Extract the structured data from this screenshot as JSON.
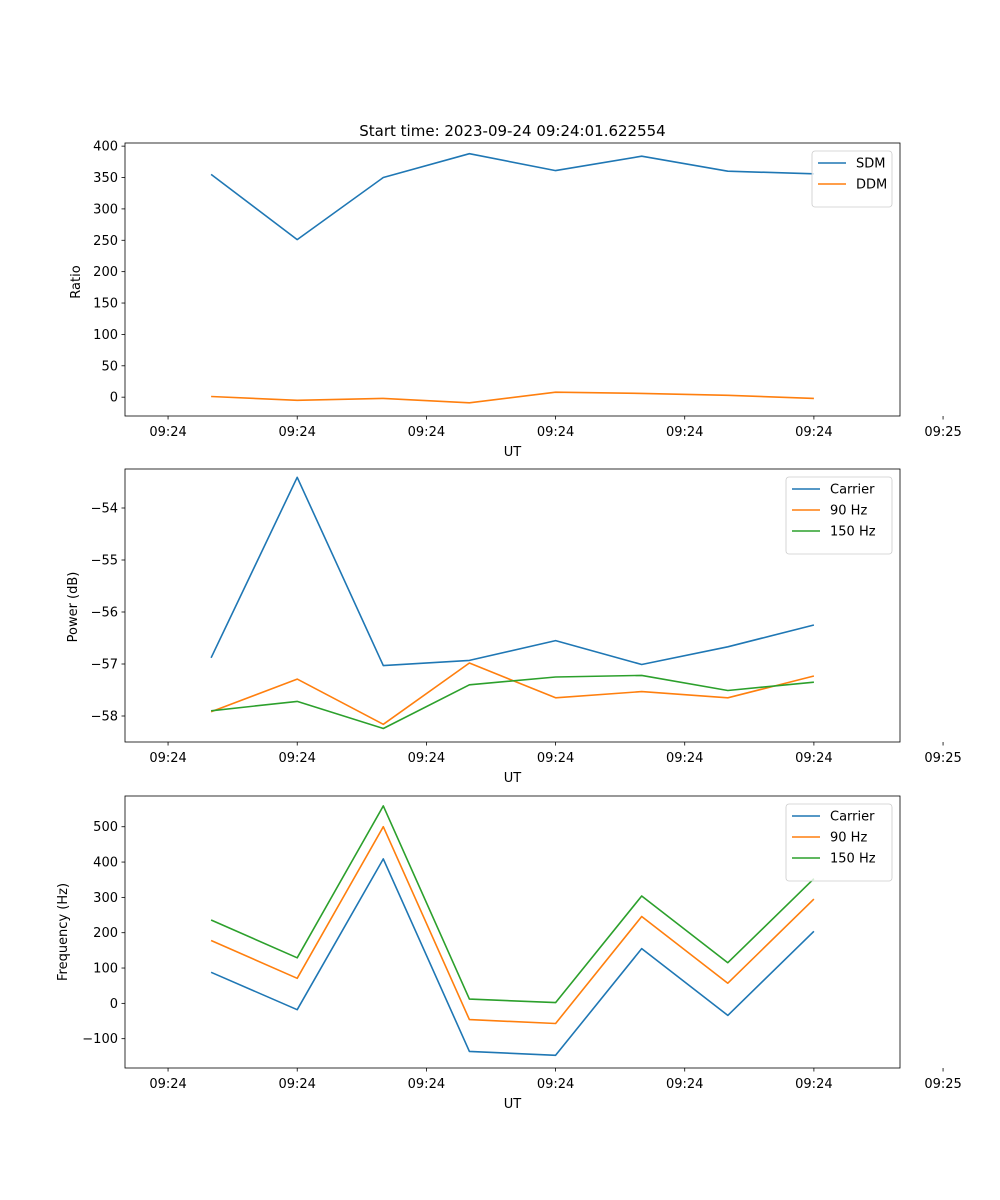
{
  "chart_data": [
    {
      "type": "line",
      "title": "Start time: 2023-09-24 09:24:01.622554",
      "xlabel": "UT",
      "ylabel": "Ratio",
      "x": [
        1,
        2,
        3,
        4,
        5,
        6,
        7,
        8
      ],
      "xlim": [
        0,
        9
      ],
      "xtick_values": [
        0.5,
        2,
        3.5,
        5,
        6.5,
        8,
        9.5
      ],
      "xtick_labels": [
        "09:24",
        "09:24",
        "09:24",
        "09:24",
        "09:24",
        "09:24",
        "09:25"
      ],
      "ylim": [
        -30,
        405
      ],
      "yticks": [
        0,
        50,
        100,
        150,
        200,
        250,
        300,
        350,
        400
      ],
      "ytick_labels": [
        "0",
        "50",
        "100",
        "150",
        "200",
        "250",
        "300",
        "350",
        "400"
      ],
      "legend": "top-right",
      "series": [
        {
          "name": "SDM",
          "color": "#1f77b4",
          "values": [
            355,
            251,
            350,
            388,
            361,
            384,
            360,
            356
          ]
        },
        {
          "name": "DDM",
          "color": "#ff7f0e",
          "values": [
            1,
            -5,
            -2,
            -9,
            8,
            6,
            3,
            -2
          ]
        }
      ]
    },
    {
      "type": "line",
      "title": "",
      "xlabel": "UT",
      "ylabel": "Power (dB)",
      "x": [
        1,
        2,
        3,
        4,
        5,
        6,
        7,
        8
      ],
      "xlim": [
        0,
        9
      ],
      "xtick_values": [
        0.5,
        2,
        3.5,
        5,
        6.5,
        8,
        9.5
      ],
      "xtick_labels": [
        "09:24",
        "09:24",
        "09:24",
        "09:24",
        "09:24",
        "09:24",
        "09:25"
      ],
      "ylim": [
        -58.5,
        -53.25
      ],
      "yticks": [
        -58,
        -57,
        -56,
        -55,
        -54
      ],
      "ytick_labels": [
        "−58",
        "−57",
        "−56",
        "−55",
        "−54"
      ],
      "legend": "top-right",
      "series": [
        {
          "name": "Carrier",
          "color": "#1f77b4",
          "values": [
            -56.88,
            -53.41,
            -57.03,
            -56.93,
            -56.55,
            -57.01,
            -56.67,
            -56.25
          ]
        },
        {
          "name": "90 Hz",
          "color": "#ff7f0e",
          "values": [
            -57.92,
            -57.29,
            -58.16,
            -56.98,
            -57.65,
            -57.53,
            -57.65,
            -57.23
          ]
        },
        {
          "name": "150 Hz",
          "color": "#2ca02c",
          "values": [
            -57.9,
            -57.72,
            -58.24,
            -57.4,
            -57.25,
            -57.22,
            -57.51,
            -57.35
          ]
        }
      ]
    },
    {
      "type": "line",
      "title": "",
      "xlabel": "UT",
      "ylabel": "Frequency (Hz)",
      "x": [
        1,
        2,
        3,
        4,
        5,
        6,
        7,
        8
      ],
      "xlim": [
        0,
        9
      ],
      "xtick_values": [
        0.5,
        2,
        3.5,
        5,
        6.5,
        8,
        9.5
      ],
      "xtick_labels": [
        "09:24",
        "09:24",
        "09:24",
        "09:24",
        "09:24",
        "09:24",
        "09:25"
      ],
      "ylim": [
        -183,
        587
      ],
      "yticks": [
        -100,
        0,
        100,
        200,
        300,
        400,
        500
      ],
      "ytick_labels": [
        "−100",
        "0",
        "100",
        "200",
        "300",
        "400",
        "500"
      ],
      "legend": "top-right",
      "series": [
        {
          "name": "Carrier",
          "color": "#1f77b4",
          "values": [
            88,
            -18,
            409,
            -136,
            -147,
            155,
            -34,
            204
          ]
        },
        {
          "name": "90 Hz",
          "color": "#ff7f0e",
          "values": [
            178,
            71,
            500,
            -46,
            -57,
            246,
            57,
            295
          ]
        },
        {
          "name": "150 Hz",
          "color": "#2ca02c",
          "values": [
            236,
            129,
            559,
            12,
            2,
            304,
            115,
            353
          ]
        }
      ]
    }
  ]
}
